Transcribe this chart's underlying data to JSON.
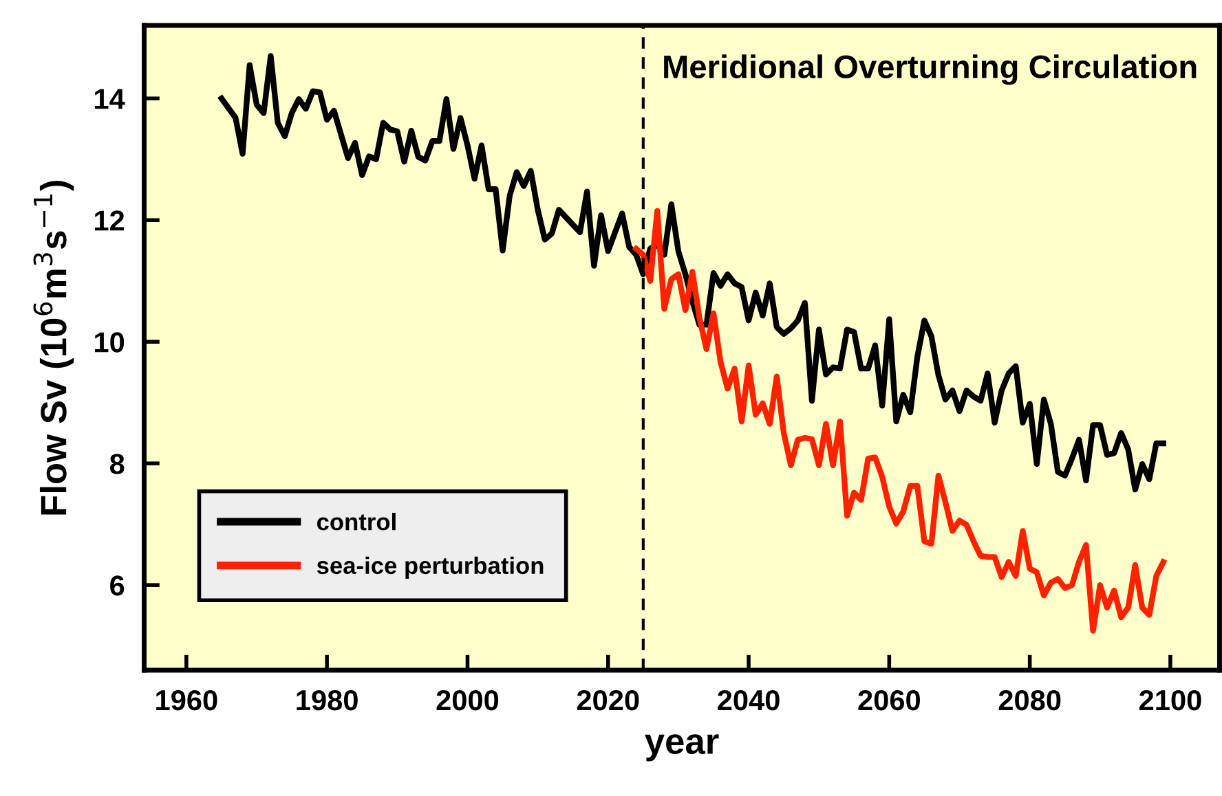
{
  "chart_data": {
    "type": "line",
    "title": "Meridional Overturning Circulation",
    "xlabel": "year",
    "ylabel": "Flow Sv (10$^{6}$m$^{3}$s$^{−1}$)",
    "xlim": [
      1954,
      2107
    ],
    "xticks": [
      1960,
      1980,
      2000,
      2020,
      2040,
      2060,
      2080,
      2100
    ],
    "ylim": [
      4.6,
      15.2
    ],
    "yticks": [
      6,
      8,
      10,
      12,
      14
    ],
    "grid": false,
    "legend": "bottom left",
    "line_style": "solid",
    "marker": "none",
    "ref_lines": [
      {
        "axis": "x",
        "value": 2025,
        "label": null,
        "color": "#000000",
        "line_style": "dashed"
      }
    ],
    "series": [
      {
        "name": "control",
        "color": "#000000",
        "x": [
          1965,
          1967,
          1968,
          1969,
          1970,
          1971,
          1972,
          1973,
          1974,
          1975,
          1976,
          1977,
          1978,
          1979,
          1980,
          1981,
          1983,
          1984,
          1985,
          1986,
          1987,
          1988,
          1989,
          1990,
          1991,
          1992,
          1993,
          1994,
          1995,
          1996,
          1997,
          1998,
          1999,
          2000,
          2001,
          2002,
          2003,
          2004,
          2005,
          2006,
          2007,
          2008,
          2009,
          2010,
          2011,
          2012,
          2013,
          2016,
          2017,
          2018,
          2019,
          2020,
          2022,
          2023,
          2024,
          2025,
          2026,
          2027,
          2028,
          2029,
          2030,
          2031,
          2032,
          2033,
          2034,
          2035,
          2036,
          2037,
          2038,
          2039,
          2040,
          2041,
          2042,
          2043,
          2044,
          2045,
          2046,
          2047,
          2048,
          2049,
          2050,
          2051,
          2052,
          2053,
          2054,
          2055,
          2056,
          2057,
          2058,
          2059,
          2060,
          2061,
          2062,
          2063,
          2064,
          2065,
          2066,
          2067,
          2068,
          2069,
          2070,
          2071,
          2072,
          2073,
          2074,
          2075,
          2076,
          2077,
          2078,
          2079,
          2080,
          2081,
          2082,
          2083,
          2084,
          2085,
          2086,
          2087,
          2088,
          2089,
          2090,
          2091,
          2092,
          2093,
          2094,
          2095,
          2096,
          2097,
          2098,
          2099
        ],
        "values": [
          14.0,
          13.68,
          13.09,
          14.55,
          13.9,
          13.76,
          14.7,
          13.6,
          13.38,
          13.76,
          13.99,
          13.83,
          14.12,
          14.1,
          13.65,
          13.8,
          13.02,
          13.27,
          12.74,
          13.05,
          13.0,
          13.6,
          13.49,
          13.46,
          12.96,
          13.47,
          13.04,
          12.98,
          13.3,
          13.3,
          13.99,
          13.17,
          13.68,
          13.23,
          12.68,
          13.23,
          12.51,
          12.51,
          11.5,
          12.4,
          12.79,
          12.56,
          12.81,
          12.17,
          11.68,
          11.78,
          12.17,
          11.8,
          12.47,
          11.25,
          12.08,
          11.49,
          12.11,
          11.56,
          11.43,
          11.11,
          11.53,
          11.6,
          11.43,
          12.26,
          11.49,
          11.11,
          10.66,
          10.28,
          10.28,
          11.13,
          10.92,
          11.11,
          10.96,
          10.9,
          10.35,
          10.81,
          10.43,
          10.96,
          10.24,
          10.13,
          10.22,
          10.35,
          10.64,
          9.03,
          10.2,
          9.46,
          9.58,
          9.56,
          10.2,
          10.16,
          9.56,
          9.56,
          9.94,
          8.95,
          10.37,
          8.69,
          9.13,
          8.84,
          9.75,
          10.35,
          10.09,
          9.45,
          9.05,
          9.2,
          8.86,
          9.2,
          9.1,
          9.03,
          9.48,
          8.67,
          9.2,
          9.48,
          9.6,
          8.67,
          8.98,
          7.99,
          9.05,
          8.65,
          7.86,
          7.8,
          8.08,
          8.39,
          7.72,
          8.63,
          8.63,
          8.14,
          8.17,
          8.5,
          8.23,
          7.57,
          7.99,
          7.74,
          8.33,
          8.33
        ]
      },
      {
        "name": "sea-ice perturbation",
        "color": "#ff2200",
        "x": [
          2024,
          2025,
          2026,
          2027,
          2028,
          2029,
          2030,
          2031,
          2032,
          2033,
          2034,
          2035,
          2036,
          2037,
          2038,
          2039,
          2040,
          2041,
          2042,
          2043,
          2044,
          2045,
          2046,
          2047,
          2048,
          2049,
          2050,
          2051,
          2052,
          2053,
          2054,
          2055,
          2056,
          2057,
          2058,
          2059,
          2060,
          2061,
          2062,
          2063,
          2064,
          2065,
          2066,
          2067,
          2068,
          2069,
          2070,
          2071,
          2072,
          2073,
          2074,
          2075,
          2076,
          2077,
          2078,
          2079,
          2080,
          2081,
          2082,
          2083,
          2084,
          2085,
          2086,
          2087,
          2088,
          2089,
          2090,
          2091,
          2092,
          2093,
          2094,
          2095,
          2096,
          2097,
          2098,
          2099
        ],
        "values": [
          11.53,
          11.43,
          11.0,
          12.15,
          10.54,
          11.03,
          11.11,
          10.52,
          11.15,
          10.39,
          9.88,
          10.47,
          9.67,
          9.23,
          9.56,
          8.69,
          9.61,
          8.8,
          8.99,
          8.65,
          9.43,
          8.5,
          7.97,
          8.39,
          8.42,
          8.4,
          7.97,
          8.65,
          7.97,
          8.69,
          7.14,
          7.52,
          7.4,
          8.08,
          8.1,
          7.78,
          7.29,
          7.01,
          7.21,
          7.63,
          7.63,
          6.72,
          6.68,
          7.8,
          7.36,
          6.89,
          7.06,
          6.99,
          6.72,
          6.48,
          6.46,
          6.46,
          6.13,
          6.38,
          6.15,
          6.89,
          6.27,
          6.21,
          5.83,
          6.04,
          6.1,
          5.95,
          6.0,
          6.38,
          6.66,
          5.25,
          6.0,
          5.63,
          5.91,
          5.47,
          5.63,
          6.33,
          5.63,
          5.51,
          6.15,
          6.38
        ]
      }
    ]
  }
}
